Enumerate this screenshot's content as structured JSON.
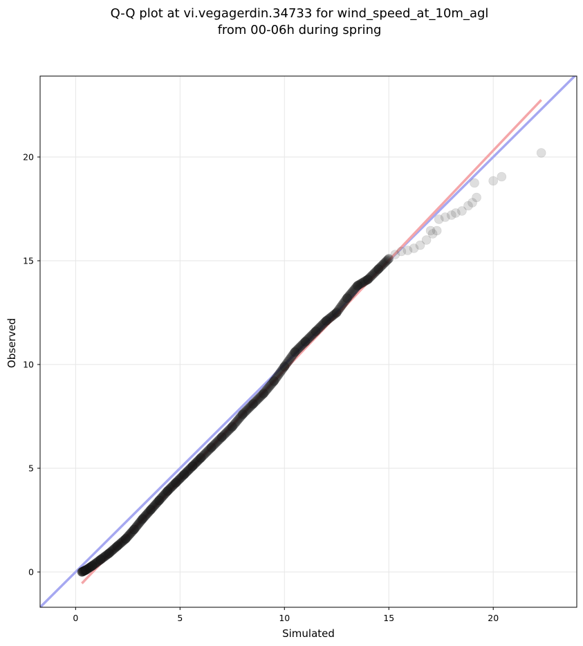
{
  "chart_data": {
    "type": "scatter",
    "title_lines": [
      "Q-Q plot at vi.vegagerdin.34733 for wind_speed_at_10m_agl",
      "from 00-06h during spring"
    ],
    "xlabel": "Simulated",
    "ylabel": "Observed",
    "xlim": [
      -1.7,
      24.0
    ],
    "ylim": [
      -1.7,
      23.9
    ],
    "xticks": [
      0,
      5,
      10,
      15,
      20
    ],
    "yticks": [
      0,
      5,
      10,
      15,
      20
    ],
    "grid": true,
    "quantiles_curve": [
      [
        0.3,
        0.0
      ],
      [
        0.5,
        0.1
      ],
      [
        0.8,
        0.3
      ],
      [
        1.2,
        0.6
      ],
      [
        1.6,
        0.9
      ],
      [
        2.0,
        1.25
      ],
      [
        2.4,
        1.6
      ],
      [
        2.8,
        2.05
      ],
      [
        3.2,
        2.55
      ],
      [
        3.6,
        3.0
      ],
      [
        4.0,
        3.45
      ],
      [
        4.4,
        3.9
      ],
      [
        4.8,
        4.3
      ],
      [
        5.2,
        4.7
      ],
      [
        5.6,
        5.1
      ],
      [
        6.0,
        5.5
      ],
      [
        6.5,
        6.0
      ],
      [
        7.0,
        6.5
      ],
      [
        7.5,
        7.0
      ],
      [
        8.0,
        7.6
      ],
      [
        8.5,
        8.1
      ],
      [
        9.0,
        8.6
      ],
      [
        9.5,
        9.2
      ],
      [
        10.0,
        9.9
      ],
      [
        10.5,
        10.6
      ],
      [
        11.0,
        11.1
      ],
      [
        11.5,
        11.6
      ],
      [
        12.0,
        12.1
      ],
      [
        12.5,
        12.5
      ],
      [
        13.0,
        13.2
      ],
      [
        13.5,
        13.8
      ],
      [
        14.0,
        14.1
      ],
      [
        14.5,
        14.6
      ],
      [
        15.0,
        15.1
      ]
    ],
    "tail_points": [
      [
        15.3,
        15.3
      ],
      [
        15.6,
        15.45
      ],
      [
        15.9,
        15.5
      ],
      [
        16.2,
        15.6
      ],
      [
        16.5,
        15.75
      ],
      [
        16.8,
        16.0
      ],
      [
        17.1,
        16.3
      ],
      [
        17.3,
        16.45
      ],
      [
        17.0,
        16.45
      ],
      [
        17.4,
        17.0
      ],
      [
        17.7,
        17.1
      ],
      [
        18.0,
        17.2
      ],
      [
        18.2,
        17.3
      ],
      [
        18.5,
        17.4
      ],
      [
        18.8,
        17.65
      ],
      [
        19.0,
        17.8
      ],
      [
        19.2,
        18.05
      ],
      [
        19.1,
        18.75
      ],
      [
        20.0,
        18.85
      ],
      [
        20.4,
        19.05
      ],
      [
        22.3,
        20.2
      ]
    ],
    "identity_line": {
      "color": "#a6a8f1",
      "from": [
        -1.7,
        -1.7
      ],
      "to": [
        24.0,
        24.0
      ]
    },
    "fit_line": {
      "color": "#f4a6a9",
      "from": [
        0.3,
        -0.55
      ],
      "to": [
        22.3,
        22.75
      ]
    }
  }
}
